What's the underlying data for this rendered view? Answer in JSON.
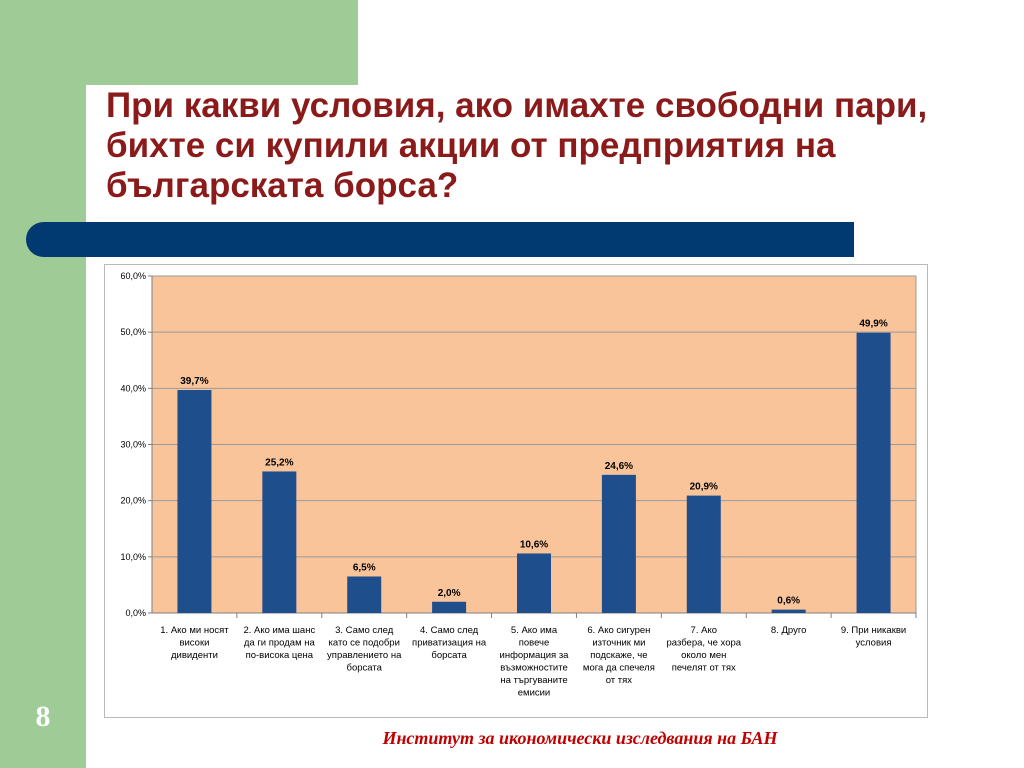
{
  "slide": {
    "title_lines": [
      "При какви условия, ако имахте свободни пари,",
      "бихте си купили акции от предприятия на",
      "българската борса?"
    ],
    "page_number": "8",
    "footer": "Институт за икономически изследвания на БАН"
  },
  "colors": {
    "bar": "#1f4e8c",
    "plot_bg": "#f9c49a",
    "accent_band": "#003a70",
    "side_strip": "#9fcc96",
    "title": "#8b1a1a",
    "footer": "#c00000"
  },
  "chart_data": {
    "type": "bar",
    "categories": [
      [
        "1. Ако ми носят",
        "високи",
        "дивиденти"
      ],
      [
        "2. Ако има шанс",
        "да ги продам на",
        "по-висока цена"
      ],
      [
        "3. Само след",
        "като се подобри",
        "управлението на",
        "борсата"
      ],
      [
        "4. Само след",
        "приватизация на",
        "борсата"
      ],
      [
        "5. Ако има",
        "повече",
        "информация за",
        "възможностите",
        "на търгуваните",
        "емисии"
      ],
      [
        "6. Ако сигурен",
        "източник ми",
        "подскаже, че",
        "мога да спечеля",
        "от тях"
      ],
      [
        "7. Ако",
        "разбера, че хора",
        "около мен",
        "печелят от тях"
      ],
      [
        "8. Друго"
      ],
      [
        "9. При никакви",
        "условия"
      ]
    ],
    "values": [
      39.7,
      25.2,
      6.5,
      2.0,
      10.6,
      24.6,
      20.9,
      0.6,
      49.9
    ],
    "data_labels": [
      "39,7%",
      "25,2%",
      "6,5%",
      "2,0%",
      "10,6%",
      "24,6%",
      "20,9%",
      "0,6%",
      "49,9%"
    ],
    "y_ticks": [
      0,
      10,
      20,
      30,
      40,
      50,
      60
    ],
    "y_tick_labels": [
      "0,0%",
      "10,0%",
      "20,0%",
      "30,0%",
      "40,0%",
      "50,0%",
      "60,0%"
    ],
    "ylim": [
      0,
      60
    ],
    "grid": true,
    "legend": "none"
  }
}
